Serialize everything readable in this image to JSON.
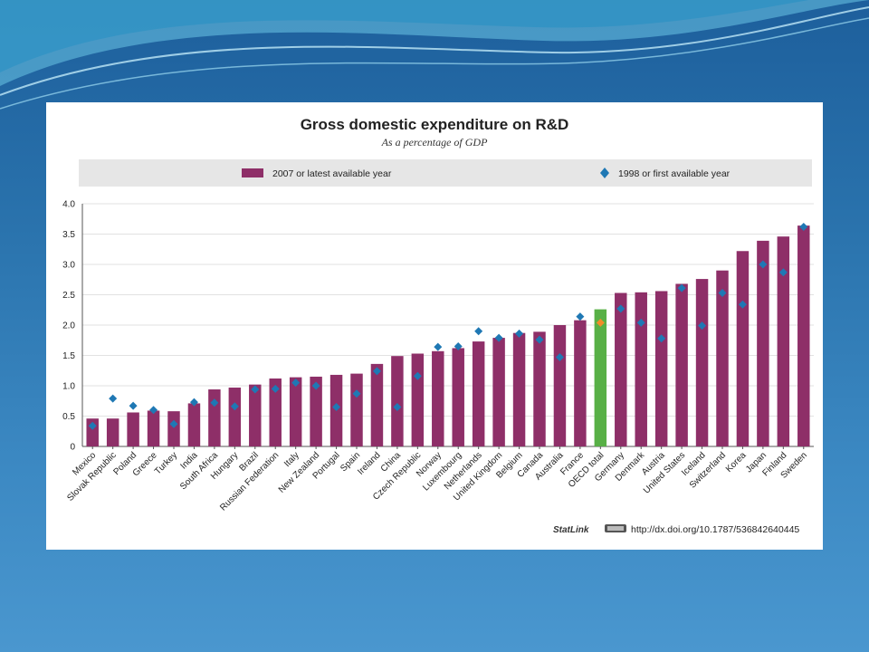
{
  "chart_data": {
    "type": "bar",
    "title": "Gross domestic expenditure on R&D",
    "subtitle": "As a percentage of GDP",
    "legend": [
      {
        "name": "2007 or latest available year",
        "marker": "bar"
      },
      {
        "name": "1998 or first available year",
        "marker": "diamond"
      }
    ],
    "legend_position": "top",
    "ylim": [
      0,
      4.0
    ],
    "yticks": [
      "0",
      "0.5",
      "1.0",
      "1.5",
      "2.0",
      "2.5",
      "3.0",
      "3.5",
      "4.0"
    ],
    "categories": [
      "Mexico",
      "Slovak Republic",
      "Poland",
      "Greece",
      "Turkey",
      "India",
      "South Africa",
      "Hungary",
      "Brazil",
      "Russian Federation",
      "Italy",
      "New Zealand",
      "Portugal",
      "Spain",
      "Ireland",
      "China",
      "Czech Republic",
      "Norway",
      "Luxembourg",
      "Netherlands",
      "United Kingdom",
      "Belgium",
      "Canada",
      "Australia",
      "France",
      "OECD total",
      "Germany",
      "Denmark",
      "Austria",
      "United States",
      "Iceland",
      "Switzerland",
      "Korea",
      "Japan",
      "Finland",
      "Sweden"
    ],
    "series": [
      {
        "name": "2007 or latest available year",
        "values": [
          0.46,
          0.46,
          0.56,
          0.59,
          0.58,
          0.71,
          0.94,
          0.97,
          1.02,
          1.12,
          1.14,
          1.15,
          1.18,
          1.2,
          1.36,
          1.49,
          1.53,
          1.57,
          1.62,
          1.73,
          1.79,
          1.87,
          1.89,
          2.0,
          2.08,
          2.26,
          2.53,
          2.54,
          2.56,
          2.68,
          2.76,
          2.9,
          3.22,
          3.39,
          3.46,
          3.64
        ]
      },
      {
        "name": "1998 or first available year",
        "values": [
          0.34,
          0.79,
          0.67,
          0.6,
          0.37,
          0.73,
          0.72,
          0.66,
          0.94,
          0.95,
          1.05,
          1.0,
          0.65,
          0.87,
          1.24,
          0.65,
          1.16,
          1.64,
          1.65,
          1.9,
          1.79,
          1.86,
          1.76,
          1.47,
          2.14,
          2.04,
          2.27,
          2.04,
          1.78,
          2.61,
          1.99,
          2.53,
          2.34,
          3.0,
          2.87,
          3.62
        ]
      }
    ],
    "highlight": {
      "category": "OECD total",
      "bar_color": "#58b046",
      "marker_color": "#f28c28"
    },
    "colors": {
      "bar": "#8e2f68",
      "marker": "#1f78b4"
    },
    "grid": true,
    "footer": {
      "brand": "StatLink",
      "url": "http://dx.doi.org/10.1787/536842640445"
    }
  }
}
